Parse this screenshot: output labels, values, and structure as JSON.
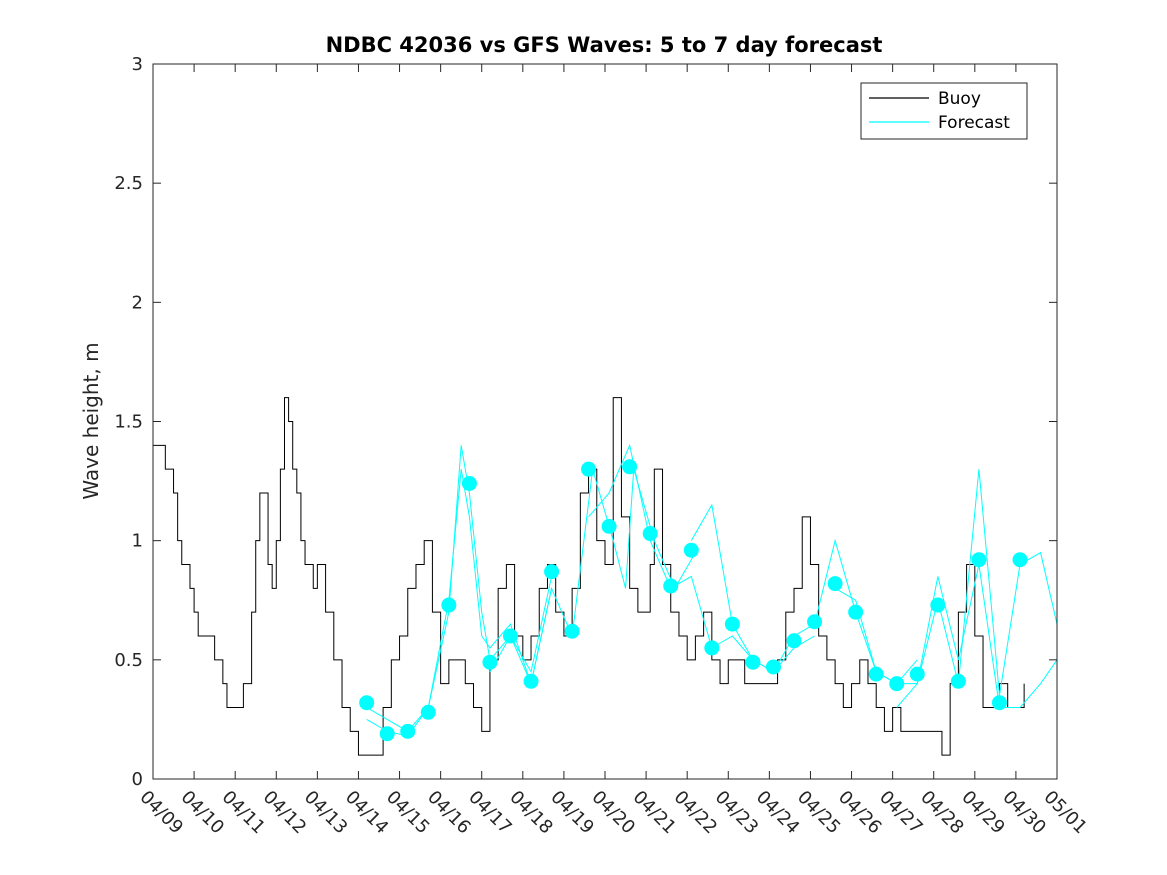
{
  "chart_data": {
    "type": "line",
    "title": "NDBC 42036 vs GFS Waves: 5 to 7 day forecast",
    "ylabel": "Wave height, m",
    "xlabel": "",
    "ylim": [
      0,
      3
    ],
    "xlim": [
      0,
      22
    ],
    "yticks": [
      0,
      0.5,
      1,
      1.5,
      2,
      2.5,
      3
    ],
    "ytick_labels": [
      "0",
      "0.5",
      "1",
      "1.5",
      "2",
      "2.5",
      "3"
    ],
    "xtick_labels": [
      "04/09",
      "04/10",
      "04/11",
      "04/12",
      "04/13",
      "04/14",
      "04/15",
      "04/16",
      "04/17",
      "04/18",
      "04/19",
      "04/20",
      "04/21",
      "04/22",
      "04/23",
      "04/24",
      "04/25",
      "04/26",
      "04/27",
      "04/28",
      "04/29",
      "04/30",
      "05/01"
    ],
    "x_units": "days since 04/09",
    "legend": {
      "placement": "top-right",
      "entries": [
        "Buoy",
        "Forecast"
      ]
    },
    "colors": {
      "buoy": "#000000",
      "forecast": "#00ffff"
    },
    "series": [
      {
        "name": "Buoy",
        "x": [
          0,
          0.2,
          0.3,
          0.5,
          0.6,
          0.7,
          0.8,
          0.9,
          1.0,
          1.1,
          1.2,
          1.5,
          1.7,
          1.8,
          2.0,
          2.2,
          2.4,
          2.5,
          2.6,
          2.8,
          2.9,
          3.0,
          3.1,
          3.2,
          3.3,
          3.4,
          3.5,
          3.6,
          3.7,
          3.8,
          3.9,
          4.0,
          4.2,
          4.4,
          4.6,
          4.8,
          5.0,
          5.2,
          5.4,
          5.6,
          5.8,
          6.0,
          6.2,
          6.4,
          6.6,
          6.8,
          7.0,
          7.2,
          7.4,
          7.6,
          7.8,
          8.0,
          8.2,
          8.4,
          8.6,
          8.8,
          9.0,
          9.2,
          9.4,
          9.6,
          9.8,
          10.0,
          10.2,
          10.4,
          10.6,
          10.8,
          11.0,
          11.2,
          11.4,
          11.6,
          11.8,
          12.0,
          12.1,
          12.2,
          12.4,
          12.6,
          12.8,
          13.0,
          13.2,
          13.4,
          13.6,
          13.8,
          14.0,
          14.2,
          14.4,
          14.6,
          14.8,
          15.0,
          15.2,
          15.4,
          15.6,
          15.8,
          16.0,
          16.2,
          16.4,
          16.6,
          16.8,
          17.0,
          17.2,
          17.4,
          17.6,
          17.8,
          18.0,
          18.2,
          18.4,
          18.6,
          18.8,
          19.0,
          19.2,
          19.4,
          19.6,
          19.8,
          20.0,
          20.2,
          20.4,
          20.6,
          20.8,
          21.0,
          21.2
        ],
        "y": [
          1.4,
          1.4,
          1.3,
          1.2,
          1.0,
          0.9,
          0.9,
          0.8,
          0.7,
          0.6,
          0.6,
          0.5,
          0.4,
          0.3,
          0.3,
          0.4,
          0.7,
          1.0,
          1.2,
          0.9,
          0.8,
          1.0,
          1.3,
          1.6,
          1.5,
          1.3,
          1.2,
          1.0,
          0.9,
          0.9,
          0.8,
          0.9,
          0.7,
          0.5,
          0.3,
          0.2,
          0.1,
          0.1,
          0.1,
          0.3,
          0.5,
          0.6,
          0.8,
          0.9,
          1.0,
          0.7,
          0.4,
          0.5,
          0.5,
          0.4,
          0.3,
          0.2,
          0.5,
          0.8,
          0.9,
          0.6,
          0.5,
          0.6,
          0.8,
          0.9,
          0.7,
          0.6,
          0.8,
          1.2,
          1.3,
          1.0,
          0.9,
          1.6,
          1.1,
          0.8,
          0.7,
          0.7,
          0.9,
          1.3,
          0.9,
          0.7,
          0.6,
          0.5,
          0.6,
          0.7,
          0.5,
          0.4,
          0.5,
          0.5,
          0.4,
          0.4,
          0.4,
          0.4,
          0.5,
          0.7,
          0.8,
          1.1,
          0.9,
          0.6,
          0.5,
          0.4,
          0.3,
          0.4,
          0.5,
          0.4,
          0.3,
          0.2,
          0.3,
          0.2,
          0.2,
          0.2,
          0.2,
          0.2,
          0.1,
          0.4,
          0.7,
          0.9,
          0.6,
          0.3,
          0.3,
          0.4,
          0.3,
          0.3,
          0.4
        ]
      },
      {
        "name": "Forecast",
        "markers": {
          "x": [
            5.2,
            5.7,
            6.2,
            6.7,
            7.2,
            7.7,
            8.2,
            8.7,
            9.2,
            9.7,
            10.2,
            10.6,
            11.1,
            11.6,
            12.1,
            12.6,
            13.1,
            13.6,
            14.1,
            14.6,
            15.1,
            15.6,
            16.1,
            16.6,
            17.1,
            17.6,
            18.1,
            18.6,
            19.1,
            19.6,
            20.1,
            20.6,
            21.1,
            21.6
          ],
          "y": [
            0.32,
            0.19,
            0.2,
            0.28,
            0.73,
            1.24,
            0.49,
            0.6,
            0.41,
            0.87,
            0.62,
            1.3,
            1.06,
            1.31,
            1.03,
            0.81,
            0.96,
            0.55,
            0.65,
            0.49,
            0.47,
            0.58,
            0.66,
            0.82,
            0.7,
            0.44,
            0.4,
            0.44,
            0.73,
            0.41,
            0.92,
            0.32,
            0.92,
            null
          ]
        },
        "lines": [
          {
            "x": [
              5.2,
              5.7,
              6.2,
              6.7,
              7.2,
              7.5,
              7.7,
              8.0,
              8.2,
              8.7,
              9.2,
              9.7
            ],
            "y": [
              0.3,
              0.25,
              0.2,
              0.3,
              0.7,
              1.4,
              1.2,
              0.7,
              0.5,
              0.6,
              0.45,
              0.85
            ]
          },
          {
            "x": [
              5.2,
              5.7,
              6.2,
              6.7,
              7.2,
              7.5,
              7.7,
              8.0,
              8.2,
              8.7,
              9.2,
              9.7
            ],
            "y": [
              0.25,
              0.2,
              0.18,
              0.3,
              0.75,
              1.3,
              1.1,
              0.6,
              0.55,
              0.65,
              0.4,
              0.8
            ]
          },
          {
            "x": [
              8.2,
              8.7,
              9.2,
              9.7,
              10.2,
              10.7,
              11.2,
              11.5,
              11.7,
              12.2,
              12.7,
              13.2
            ],
            "y": [
              0.45,
              0.6,
              0.4,
              0.8,
              0.6,
              1.3,
              1.0,
              0.8,
              1.3,
              1.0,
              0.8,
              0.95
            ]
          },
          {
            "x": [
              10.6,
              11.1,
              11.6,
              12.1,
              12.6,
              13.1,
              13.6,
              14.1,
              14.6,
              15.1,
              15.6,
              16.1
            ],
            "y": [
              1.1,
              1.2,
              1.4,
              1.0,
              0.8,
              0.85,
              0.55,
              0.6,
              0.5,
              0.45,
              0.55,
              0.6
            ]
          },
          {
            "x": [
              13.1,
              13.6,
              14.1,
              14.6,
              15.1,
              15.6,
              16.1,
              16.6,
              17.1,
              17.6,
              18.1,
              18.6
            ],
            "y": [
              1.0,
              1.15,
              0.65,
              0.5,
              0.45,
              0.6,
              0.65,
              1.0,
              0.7,
              0.45,
              0.4,
              0.5
            ]
          },
          {
            "x": [
              16.6,
              17.1,
              17.6,
              18.1,
              18.6,
              19.1,
              19.6,
              20.1,
              20.6,
              21.1,
              21.6,
              22.0
            ],
            "y": [
              0.8,
              0.75,
              0.45,
              0.4,
              0.4,
              0.75,
              0.4,
              1.3,
              0.35,
              0.9,
              0.95,
              0.65
            ]
          },
          {
            "x": [
              18.1,
              18.6,
              19.1,
              19.6,
              20.1,
              20.6,
              21.1,
              21.6,
              22.0
            ],
            "y": [
              0.3,
              0.4,
              0.85,
              0.5,
              0.9,
              0.3,
              0.3,
              0.4,
              0.5
            ]
          }
        ]
      }
    ]
  }
}
